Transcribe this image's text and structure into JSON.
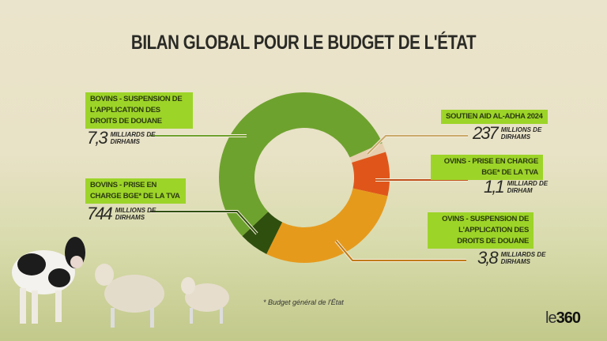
{
  "title": "BILAN GLOBAL POUR LE BUDGET DE L'ÉTAT",
  "footnote": "* Budget général de l'État",
  "logo": {
    "prefix": "le",
    "suffix": "360"
  },
  "chart_data": {
    "type": "pie",
    "variant": "donut",
    "title": "BILAN GLOBAL POUR LE BUDGET DE L'ÉTAT",
    "unit": "milliards de dirhams",
    "segments": [
      {
        "label": "SOUTIEN AID AL-ADHA 2024",
        "value": 0.237,
        "num": "237",
        "unit": "MILLIONS DE DIRHAMS",
        "color": "#e6cfae"
      },
      {
        "label": "OVINS - PRISE EN CHARGE BGE* DE LA TVA",
        "value": 1.1,
        "num": "1,1",
        "unit": "MILLIARD DE DIRHAM",
        "color": "#e0561a"
      },
      {
        "label": "OVINS - SUSPENSION DE L'APPLICATION DES DROITS DE DOUANE",
        "value": 3.8,
        "num": "3,8",
        "unit": "MILLIARDS DE DIRHAMS",
        "color": "#e69a1c"
      },
      {
        "label": "BOVINS - PRISE EN CHARGE BGE* DE LA TVA",
        "value": 0.744,
        "num": "744",
        "unit": "MILLIONS DE DIRHAMS",
        "color": "#2f4f0f"
      },
      {
        "label": "BOVINS - SUSPENSION DE L'APPLICATION DES DROITS DE DOUANE",
        "value": 7.3,
        "num": "7,3",
        "unit": "MILLIARDS DE DIRHAMS",
        "color": "#6ea22e"
      }
    ]
  }
}
